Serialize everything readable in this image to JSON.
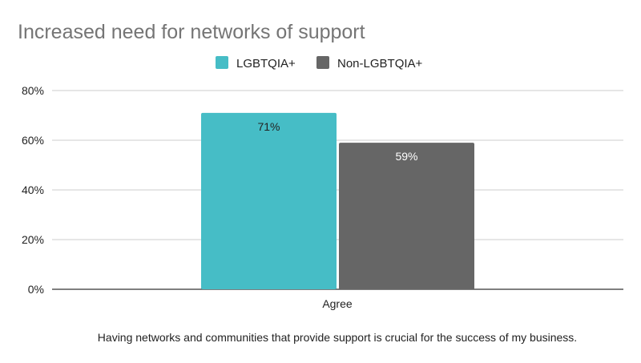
{
  "chart_data": {
    "type": "bar",
    "title": "Increased need for networks of support",
    "categories": [
      "Agree"
    ],
    "series": [
      {
        "name": "LGBTQIA+",
        "values": [
          71
        ],
        "labels": [
          "71%"
        ],
        "color": "#46bdc6"
      },
      {
        "name": "Non-LGBTQIA+",
        "values": [
          59
        ],
        "labels": [
          "59%"
        ],
        "color": "#666666"
      }
    ],
    "xlabel": "Having networks and communities that provide support is crucial for the success of my business.",
    "ylabel": "",
    "ylim": [
      0,
      80
    ],
    "yticks": [
      "0%",
      "20%",
      "40%",
      "60%",
      "80%"
    ],
    "grid": true,
    "legend": "top"
  }
}
